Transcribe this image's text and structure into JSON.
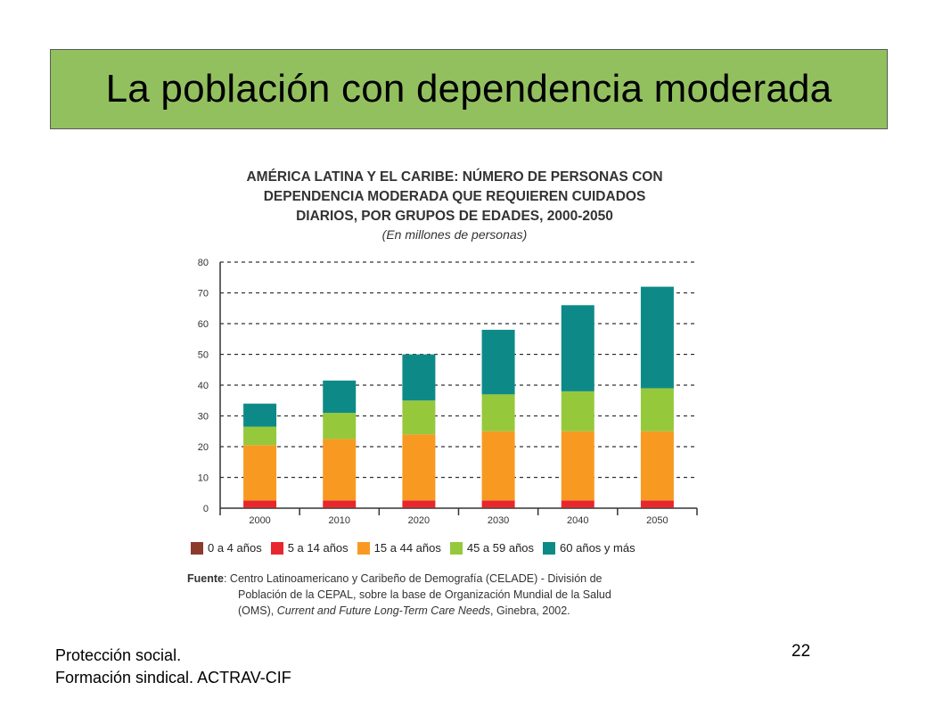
{
  "slide": {
    "title": "La población con dependencia moderada",
    "footer_line1": "Protección social.",
    "footer_line2": "Formación sindical.  ACTRAV-CIF",
    "page_number": "22"
  },
  "chart_heading": {
    "line1": "AMÉRICA LATINA Y EL CARIBE: NÚMERO DE PERSONAS CON",
    "line2": "DEPENDENCIA MODERADA QUE REQUIEREN CUIDADOS",
    "line3": "DIARIOS, POR GRUPOS DE EDADES, 2000-2050",
    "subtitle": "(En millones de personas)"
  },
  "source": {
    "lead": "Fuente",
    "line1": ": Centro Latinoamericano y Caribeño de Demografía (CELADE) - División de",
    "line2": "Población de la CEPAL, sobre la base de Organización Mundial de la Salud",
    "line3_pre": "(OMS), ",
    "line3_italic": "Current and Future Long-Term Care Needs",
    "line3_post": ", Ginebra, 2002."
  },
  "chart_data": {
    "type": "bar",
    "stacked": true,
    "categories": [
      "2000",
      "2010",
      "2020",
      "2030",
      "2040",
      "2050"
    ],
    "series": [
      {
        "name": "0 a 4 años",
        "color": "#8b3a2b",
        "values": [
          0.3,
          0.3,
          0.3,
          0.3,
          0.3,
          0.3
        ]
      },
      {
        "name": "5 a 14 años",
        "color": "#e8262e",
        "values": [
          2.2,
          2.2,
          2.2,
          2.2,
          2.2,
          2.2
        ]
      },
      {
        "name": "15 a 44 años",
        "color": "#f89a22",
        "values": [
          18,
          20,
          21.5,
          22.5,
          22.5,
          22.5
        ]
      },
      {
        "name": "45 a 59 años",
        "color": "#96c83c",
        "values": [
          6,
          8.5,
          11,
          12,
          13,
          14
        ]
      },
      {
        "name": "60 años y más",
        "color": "#0d8a88",
        "values": [
          7.5,
          10.5,
          15,
          21,
          28,
          33
        ]
      }
    ],
    "ylim": [
      0,
      80
    ],
    "yticks": [
      0,
      10,
      20,
      30,
      40,
      50,
      60,
      70,
      80
    ],
    "grid": "dashed horizontal",
    "legend": "bottom"
  }
}
